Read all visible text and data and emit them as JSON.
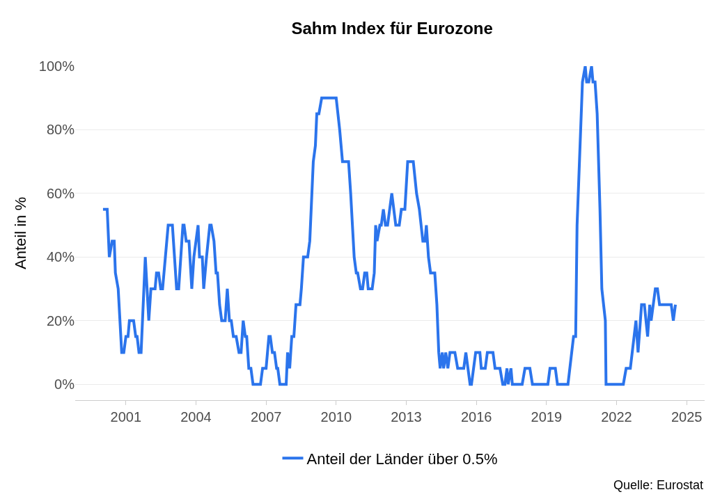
{
  "chart_data": {
    "type": "line",
    "title": "Sahm Index für Eurozone",
    "ylabel": "Anteil in %",
    "xlim": [
      1998.83,
      2025.77
    ],
    "xticks": [
      2001,
      2004,
      2007,
      2010,
      2013,
      2016,
      2019,
      2022,
      2025
    ],
    "ylim": [
      -5,
      100
    ],
    "yticks": [
      {
        "value": 0,
        "label": "0%"
      },
      {
        "value": 20,
        "label": "20%"
      },
      {
        "value": 40,
        "label": "40%"
      },
      {
        "value": 60,
        "label": "60%"
      },
      {
        "value": 80,
        "label": "80%"
      },
      {
        "value": 100,
        "label": "100%"
      }
    ],
    "grid": "y",
    "legend": "bottom",
    "marker": "none",
    "line_style": "solid",
    "annotations": [
      "Quelle: Eurostat"
    ],
    "series": [
      {
        "name": "Anteil der Länder über 0.5%",
        "color": "#2b74ec",
        "x": [
          2000.02,
          2000.2,
          2000.29,
          2000.41,
          2000.5,
          2000.55,
          2000.67,
          2000.82,
          2000.91,
          2001.0,
          2001.09,
          2001.15,
          2001.33,
          2001.42,
          2001.48,
          2001.56,
          2001.65,
          2001.83,
          2001.98,
          2002.07,
          2002.25,
          2002.31,
          2002.4,
          2002.49,
          2002.57,
          2002.69,
          2002.81,
          2002.99,
          2003.17,
          2003.26,
          2003.44,
          2003.49,
          2003.58,
          2003.7,
          2003.82,
          2003.91,
          2004.09,
          2004.15,
          2004.27,
          2004.33,
          2004.45,
          2004.59,
          2004.65,
          2004.77,
          2004.86,
          2004.92,
          2005.01,
          2005.1,
          2005.25,
          2005.34,
          2005.43,
          2005.51,
          2005.6,
          2005.72,
          2005.84,
          2005.93,
          2006.02,
          2006.11,
          2006.17,
          2006.26,
          2006.35,
          2006.44,
          2006.76,
          2006.85,
          2007.0,
          2007.12,
          2007.18,
          2007.27,
          2007.36,
          2007.45,
          2007.5,
          2007.59,
          2007.86,
          2007.92,
          2008.01,
          2008.1,
          2008.19,
          2008.28,
          2008.45,
          2008.51,
          2008.6,
          2008.78,
          2008.87,
          2008.93,
          2009.02,
          2009.11,
          2009.17,
          2009.26,
          2009.38,
          2010.0,
          2010.15,
          2010.27,
          2010.53,
          2010.62,
          2010.77,
          2010.86,
          2010.92,
          2011.04,
          2011.13,
          2011.22,
          2011.31,
          2011.37,
          2011.54,
          2011.63,
          2011.69,
          2011.75,
          2011.87,
          2011.93,
          2012.02,
          2012.11,
          2012.2,
          2012.38,
          2012.55,
          2012.7,
          2012.79,
          2012.94,
          2013.06,
          2013.3,
          2013.44,
          2013.56,
          2013.71,
          2013.8,
          2013.86,
          2013.95,
          2014.04,
          2014.22,
          2014.31,
          2014.39,
          2014.45,
          2014.54,
          2014.6,
          2014.69,
          2014.78,
          2014.87,
          2015.08,
          2015.2,
          2015.46,
          2015.55,
          2015.73,
          2015.79,
          2015.97,
          2016.15,
          2016.21,
          2016.38,
          2016.47,
          2016.71,
          2016.8,
          2017.01,
          2017.13,
          2017.22,
          2017.31,
          2017.36,
          2017.48,
          2017.54,
          2017.96,
          2018.08,
          2018.29,
          2018.4,
          2019.06,
          2019.15,
          2019.38,
          2019.47,
          2019.92,
          2020.16,
          2020.25,
          2020.31,
          2020.54,
          2020.66,
          2020.72,
          2020.81,
          2020.93,
          2020.99,
          2021.08,
          2021.17,
          2021.29,
          2021.37,
          2021.52,
          2021.55,
          2022.29,
          2022.41,
          2022.59,
          2022.83,
          2022.92,
          2023.07,
          2023.19,
          2023.33,
          2023.42,
          2023.48,
          2023.66,
          2023.75,
          2023.84,
          2024.34,
          2024.43,
          2024.52
        ],
        "values": [
          55,
          55,
          40,
          45,
          45,
          35,
          30,
          10,
          10,
          15,
          15,
          20,
          20,
          15,
          15,
          10,
          10,
          40,
          20,
          30,
          30,
          35,
          35,
          30,
          30,
          40,
          50,
          50,
          30,
          30,
          50,
          50,
          45,
          45,
          30,
          40,
          50,
          40,
          40,
          30,
          40,
          50,
          50,
          45,
          35,
          35,
          25,
          20,
          20,
          30,
          20,
          20,
          15,
          15,
          10,
          10,
          20,
          15,
          15,
          5,
          5,
          0,
          0,
          5,
          5,
          15,
          15,
          10,
          10,
          5,
          5,
          0,
          0,
          10,
          5,
          15,
          15,
          25,
          25,
          30,
          40,
          40,
          45,
          55,
          70,
          75,
          85,
          85,
          90,
          90,
          80,
          70,
          70,
          60,
          40,
          35,
          35,
          30,
          30,
          35,
          35,
          30,
          30,
          35,
          50,
          45,
          50,
          50,
          55,
          50,
          50,
          60,
          50,
          50,
          55,
          55,
          70,
          70,
          60,
          55,
          45,
          45,
          50,
          40,
          35,
          35,
          25,
          10,
          5,
          10,
          5,
          10,
          5,
          10,
          10,
          5,
          5,
          10,
          0,
          0,
          10,
          10,
          5,
          5,
          10,
          10,
          5,
          5,
          0,
          0,
          5,
          0,
          5,
          0,
          0,
          5,
          5,
          0,
          0,
          5,
          5,
          0,
          0,
          15,
          15,
          50,
          95,
          100,
          95,
          95,
          100,
          95,
          95,
          85,
          55,
          30,
          20,
          0,
          0,
          5,
          5,
          20,
          10,
          25,
          25,
          15,
          25,
          20,
          30,
          30,
          25,
          25,
          20,
          25
        ]
      }
    ]
  }
}
